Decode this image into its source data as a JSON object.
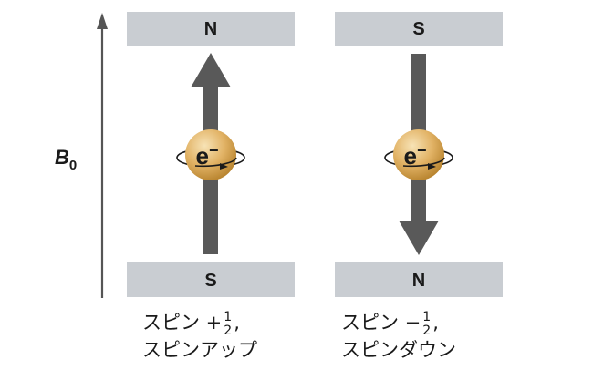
{
  "field": {
    "symbol": "B",
    "subscript": "0"
  },
  "panels": [
    {
      "top_pole": "N",
      "bottom_pole": "S",
      "arrow_direction": "up",
      "particle_label": "e",
      "particle_charge": "−",
      "caption": {
        "line1_prefix": "スピン +",
        "frac_num": "1",
        "frac_den": "2",
        "line1_suffix": ",",
        "line2": "スピンアップ"
      }
    },
    {
      "top_pole": "S",
      "bottom_pole": "N",
      "arrow_direction": "down",
      "particle_label": "e",
      "particle_charge": "−",
      "caption": {
        "line1_prefix": "スピン −",
        "frac_num": "1",
        "frac_den": "2",
        "line1_suffix": ",",
        "line2": "スピンダウン"
      }
    }
  ],
  "colors": {
    "magnet": "#c9cdd2",
    "arrow": "#595959",
    "axis": "#555555",
    "sphere_light": "#f6deaa",
    "sphere_dark": "#c58f36"
  }
}
